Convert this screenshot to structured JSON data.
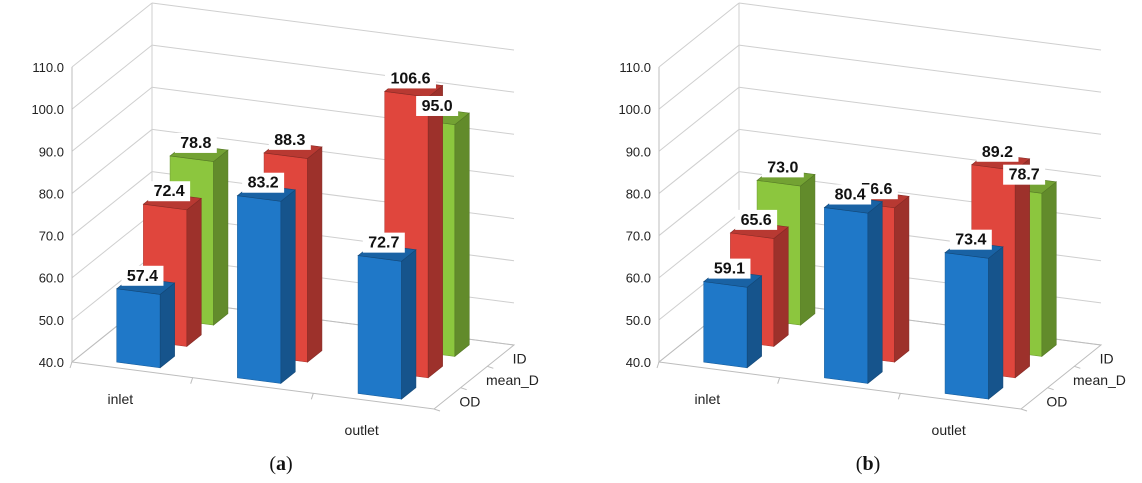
{
  "chart_data": [
    {
      "type": "bar",
      "panel_label": "a",
      "categories": [
        "inlet",
        "",
        "outlet"
      ],
      "depth_categories": [
        "OD",
        "mean_D",
        "ID"
      ],
      "ylim": [
        40,
        110
      ],
      "yticks": [
        "40.0",
        "50.0",
        "60.0",
        "70.0",
        "80.0",
        "90.0",
        "100.0",
        "110.0"
      ],
      "grid": true,
      "series": [
        {
          "values": [
            57.4,
            83.2,
            72.7
          ],
          "labels": [
            "57.4",
            "83.2",
            "72.7"
          ],
          "color": "#1f78c8"
        },
        {
          "values": [
            72.4,
            88.3,
            106.6
          ],
          "labels": [
            "72.4",
            "88.3",
            "106.6"
          ],
          "color": "#e0463d"
        },
        {
          "values": [
            78.8,
            null,
            95.0
          ],
          "labels": [
            "78.8",
            "",
            "95.0"
          ],
          "color": "#8cc63e"
        }
      ]
    },
    {
      "type": "bar",
      "panel_label": "b",
      "categories": [
        "inlet",
        "",
        "outlet"
      ],
      "depth_categories": [
        "OD",
        "mean_D",
        "ID"
      ],
      "ylim": [
        40,
        110
      ],
      "yticks": [
        "40.0",
        "50.0",
        "60.0",
        "70.0",
        "80.0",
        "90.0",
        "100.0",
        "110.0"
      ],
      "grid": true,
      "series": [
        {
          "values": [
            59.1,
            80.4,
            73.4
          ],
          "labels": [
            "59.1",
            "80.4",
            "73.4"
          ],
          "color": "#1f78c8"
        },
        {
          "values": [
            65.6,
            76.6,
            89.2
          ],
          "labels": [
            "65.6",
            "76.6",
            "89.2"
          ],
          "color": "#e0463d"
        },
        {
          "values": [
            73.0,
            null,
            78.7
          ],
          "labels": [
            "73.0",
            "",
            "78.7"
          ],
          "color": "#8cc63e"
        }
      ]
    }
  ]
}
